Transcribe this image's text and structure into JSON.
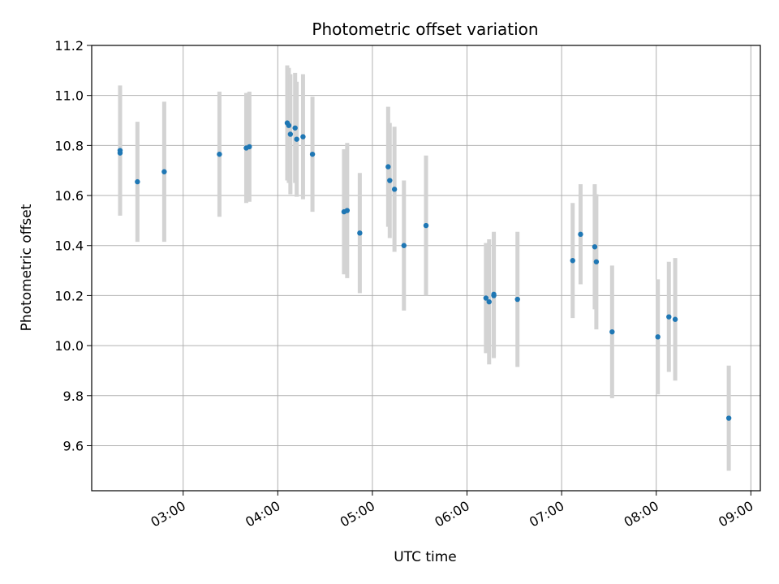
{
  "chart_data": {
    "type": "scatter",
    "title": "Photometric offset variation",
    "xlabel": "UTC time",
    "ylabel": "Photometric offset",
    "x_unit": "UTC time (HH:MM)",
    "xlim": [
      "02:02",
      "09:06"
    ],
    "ylim": [
      9.42,
      11.2
    ],
    "x_ticks": [
      "03:00",
      "04:00",
      "05:00",
      "06:00",
      "07:00",
      "08:00",
      "09:00"
    ],
    "y_ticks": [
      "9.6",
      "9.8",
      "10.0",
      "10.2",
      "10.4",
      "10.6",
      "10.8",
      "11.0",
      "11.2"
    ],
    "grid": true,
    "point_color": "#1f77b4",
    "errorbar_color": "#d3d3d3",
    "points": [
      {
        "x": "02:20",
        "y": 10.77,
        "err": 0.25
      },
      {
        "x": "02:20",
        "y": 10.78,
        "err": 0.26
      },
      {
        "x": "02:31",
        "y": 10.655,
        "err": 0.24
      },
      {
        "x": "02:48",
        "y": 10.695,
        "err": 0.28
      },
      {
        "x": "03:23",
        "y": 10.765,
        "err": 0.25
      },
      {
        "x": "03:40",
        "y": 10.79,
        "err": 0.22
      },
      {
        "x": "03:42",
        "y": 10.795,
        "err": 0.22
      },
      {
        "x": "04:06",
        "y": 10.89,
        "err": 0.23
      },
      {
        "x": "04:07",
        "y": 10.88,
        "err": 0.23
      },
      {
        "x": "04:08",
        "y": 10.845,
        "err": 0.24
      },
      {
        "x": "04:11",
        "y": 10.87,
        "err": 0.22
      },
      {
        "x": "04:12",
        "y": 10.825,
        "err": 0.23
      },
      {
        "x": "04:16",
        "y": 10.835,
        "err": 0.25
      },
      {
        "x": "04:22",
        "y": 10.765,
        "err": 0.23
      },
      {
        "x": "04:42",
        "y": 10.535,
        "err": 0.25
      },
      {
        "x": "04:44",
        "y": 10.54,
        "err": 0.27
      },
      {
        "x": "04:52",
        "y": 10.45,
        "err": 0.24
      },
      {
        "x": "05:10",
        "y": 10.715,
        "err": 0.24
      },
      {
        "x": "05:11",
        "y": 10.66,
        "err": 0.23
      },
      {
        "x": "05:14",
        "y": 10.625,
        "err": 0.25
      },
      {
        "x": "05:20",
        "y": 10.4,
        "err": 0.26
      },
      {
        "x": "05:34",
        "y": 10.48,
        "err": 0.28
      },
      {
        "x": "06:12",
        "y": 10.19,
        "err": 0.22
      },
      {
        "x": "06:14",
        "y": 10.175,
        "err": 0.25
      },
      {
        "x": "06:17",
        "y": 10.205,
        "err": 0.25
      },
      {
        "x": "06:17",
        "y": 10.2,
        "err": 0.25
      },
      {
        "x": "06:32",
        "y": 10.185,
        "err": 0.27
      },
      {
        "x": "07:07",
        "y": 10.34,
        "err": 0.23
      },
      {
        "x": "07:12",
        "y": 10.445,
        "err": 0.2
      },
      {
        "x": "07:21",
        "y": 10.395,
        "err": 0.25
      },
      {
        "x": "07:22",
        "y": 10.335,
        "err": 0.27
      },
      {
        "x": "07:32",
        "y": 10.055,
        "err": 0.265
      },
      {
        "x": "08:01",
        "y": 10.035,
        "err": 0.23
      },
      {
        "x": "08:08",
        "y": 10.115,
        "err": 0.22
      },
      {
        "x": "08:12",
        "y": 10.105,
        "err": 0.245
      },
      {
        "x": "08:46",
        "y": 9.71,
        "err": 0.21
      }
    ]
  }
}
